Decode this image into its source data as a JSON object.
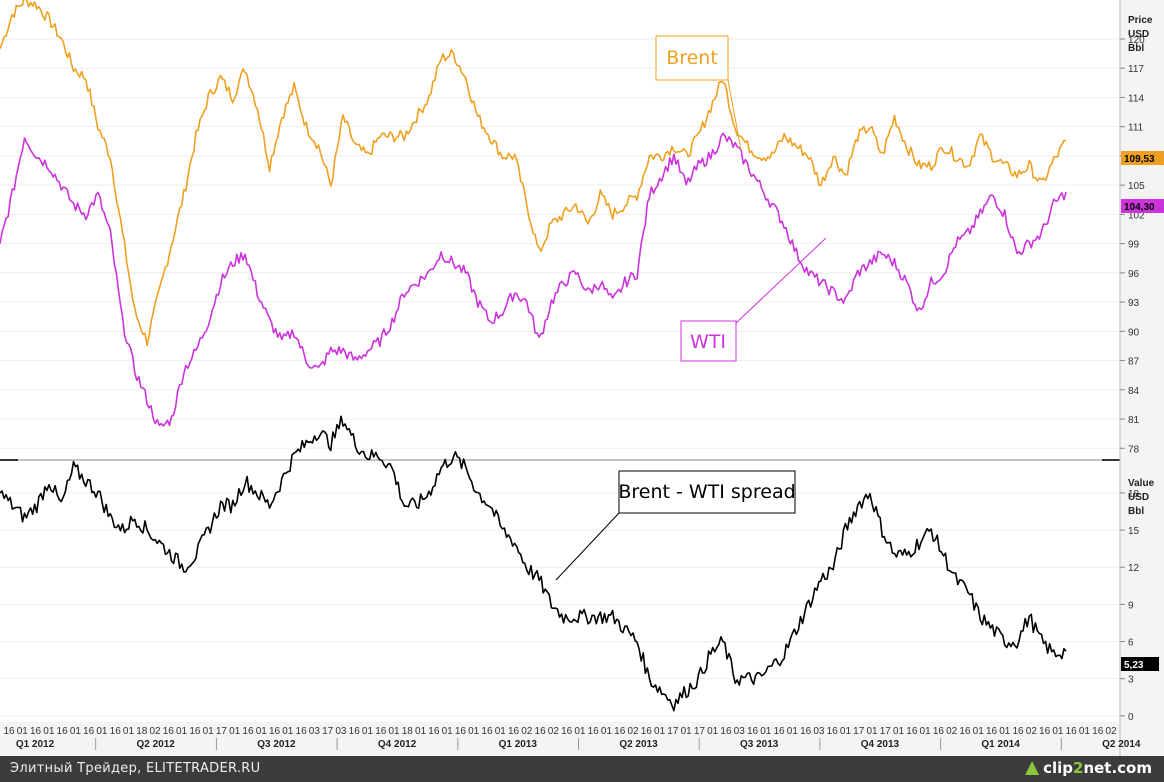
{
  "chart_data": [
    {
      "type": "line",
      "title": "",
      "ylabel_lines": [
        "Price",
        "USD",
        "Bbl"
      ],
      "ylim": [
        77,
        124
      ],
      "yticks": [
        78,
        81,
        84,
        87,
        90,
        93,
        96,
        99,
        102,
        105,
        108,
        111,
        114,
        117,
        120
      ],
      "x_range": [
        "2012-01",
        "2014-04"
      ],
      "series": [
        {
          "name": "Brent",
          "color": "#f0a020",
          "last_label": "109,53",
          "points": [
            [
              0,
              119
            ],
            [
              1,
              122.5
            ],
            [
              2,
              124
            ],
            [
              3,
              123.5
            ],
            [
              4,
              122
            ],
            [
              5,
              120
            ],
            [
              6,
              117
            ],
            [
              7,
              116
            ],
            [
              8,
              111
            ],
            [
              9,
              108
            ],
            [
              10,
              100
            ],
            [
              11,
              92
            ],
            [
              12,
              89
            ],
            [
              13,
              94
            ],
            [
              14,
              99
            ],
            [
              15,
              104
            ],
            [
              16,
              110
            ],
            [
              17,
              114
            ],
            [
              18,
              116
            ],
            [
              19,
              114
            ],
            [
              20,
              117
            ],
            [
              21,
              113
            ],
            [
              22,
              107
            ],
            [
              23,
              112
            ],
            [
              24,
              115
            ],
            [
              25,
              111
            ],
            [
              26,
              109
            ],
            [
              27,
              105
            ],
            [
              28,
              112
            ],
            [
              29,
              109
            ],
            [
              30,
              108
            ],
            [
              31,
              110
            ],
            [
              32,
              110
            ],
            [
              33,
              110
            ],
            [
              34,
              112
            ],
            [
              35,
              114
            ],
            [
              36,
              118
            ],
            [
              37,
              118.5
            ],
            [
              38,
              116
            ],
            [
              39,
              112
            ],
            [
              40,
              110
            ],
            [
              41,
              108
            ],
            [
              42,
              108
            ],
            [
              43,
              103
            ],
            [
              44,
              98
            ],
            [
              45,
              101
            ],
            [
              46,
              102
            ],
            [
              47,
              103
            ],
            [
              48,
              101
            ],
            [
              49,
              104
            ],
            [
              50,
              102
            ],
            [
              51,
              103
            ],
            [
              52,
              104
            ],
            [
              53,
              108
            ],
            [
              54,
              108
            ],
            [
              55,
              109
            ],
            [
              56,
              108
            ],
            [
              57,
              110
            ],
            [
              58,
              113
            ],
            [
              59,
              116
            ],
            [
              60,
              111
            ],
            [
              61,
              109
            ],
            [
              62,
              108
            ],
            [
              63,
              108
            ],
            [
              64,
              110
            ],
            [
              65,
              109
            ],
            [
              66,
              108
            ],
            [
              67,
              105
            ],
            [
              68,
              108
            ],
            [
              69,
              106
            ],
            [
              70,
              110
            ],
            [
              71,
              111
            ],
            [
              72,
              108
            ],
            [
              73,
              112
            ],
            [
              74,
              109
            ],
            [
              75,
              107
            ],
            [
              76,
              107
            ],
            [
              77,
              109
            ],
            [
              78,
              108
            ],
            [
              79,
              107
            ],
            [
              80,
              110
            ],
            [
              81,
              108
            ],
            [
              82,
              107
            ],
            [
              83,
              106
            ],
            [
              84,
              107
            ],
            [
              85,
              105
            ],
            [
              86,
              107.5
            ],
            [
              87,
              109.53
            ]
          ]
        },
        {
          "name": "WTI",
          "color": "#cc33dd",
          "last_label": "104,30",
          "points": [
            [
              0,
              99
            ],
            [
              1,
              104
            ],
            [
              2,
              110
            ],
            [
              3,
              108
            ],
            [
              4,
              107
            ],
            [
              5,
              105
            ],
            [
              6,
              103
            ],
            [
              7,
              102
            ],
            [
              8,
              104
            ],
            [
              9,
              100
            ],
            [
              10,
              91
            ],
            [
              11,
              86
            ],
            [
              12,
              83
            ],
            [
              13,
              80
            ],
            [
              14,
              81
            ],
            [
              15,
              86
            ],
            [
              16,
              88
            ],
            [
              17,
              91
            ],
            [
              18,
              95
            ],
            [
              19,
              97
            ],
            [
              20,
              98
            ],
            [
              21,
              94
            ],
            [
              22,
              91
            ],
            [
              23,
              89
            ],
            [
              24,
              90
            ],
            [
              25,
              87
            ],
            [
              26,
              86
            ],
            [
              27,
              88
            ],
            [
              28,
              88
            ],
            [
              29,
              87
            ],
            [
              30,
              88
            ],
            [
              31,
              89
            ],
            [
              32,
              91
            ],
            [
              33,
              94
            ],
            [
              34,
              95
            ],
            [
              35,
              96
            ],
            [
              36,
              98
            ],
            [
              37,
              97
            ],
            [
              38,
              96
            ],
            [
              39,
              93
            ],
            [
              40,
              91
            ],
            [
              41,
              92
            ],
            [
              42,
              94
            ],
            [
              43,
              93
            ],
            [
              44,
              89
            ],
            [
              45,
              93
            ],
            [
              46,
              95
            ],
            [
              47,
              96
            ],
            [
              48,
              94
            ],
            [
              49,
              95
            ],
            [
              50,
              93
            ],
            [
              51,
              95
            ],
            [
              52,
              96
            ],
            [
              53,
              104
            ],
            [
              54,
              106
            ],
            [
              55,
              108
            ],
            [
              56,
              105
            ],
            [
              57,
              107
            ],
            [
              58,
              108
            ],
            [
              59,
              110
            ],
            [
              60,
              109
            ],
            [
              61,
              107
            ],
            [
              62,
              105
            ],
            [
              63,
              103
            ],
            [
              64,
              101
            ],
            [
              65,
              98
            ],
            [
              66,
              96
            ],
            [
              67,
              95
            ],
            [
              68,
              94
            ],
            [
              69,
              93
            ],
            [
              70,
              96
            ],
            [
              71,
              97
            ],
            [
              72,
              98
            ],
            [
              73,
              97
            ],
            [
              74,
              95
            ],
            [
              75,
              92
            ],
            [
              76,
              95
            ],
            [
              77,
              96
            ],
            [
              78,
              99
            ],
            [
              79,
              100
            ],
            [
              80,
              102
            ],
            [
              81,
              104
            ],
            [
              82,
              102
            ],
            [
              83,
              98
            ],
            [
              84,
              99
            ],
            [
              85,
              100
            ],
            [
              86,
              103
            ],
            [
              87,
              104.3
            ]
          ]
        }
      ],
      "annotations": [
        {
          "text": "Brent",
          "color": "#f0a020"
        },
        {
          "text": "WTI",
          "color": "#cc33dd"
        }
      ]
    },
    {
      "type": "line",
      "title": "",
      "ylabel_lines": [
        "Value",
        "USD",
        "Bbl"
      ],
      "ylim": [
        -0.5,
        20.5
      ],
      "yticks": [
        0,
        3,
        6,
        9,
        12,
        15,
        18
      ],
      "series": [
        {
          "name": "Brent - WTI spread",
          "color": "#000000",
          "last_label": "5,23",
          "points": [
            [
              0,
              18
            ],
            [
              1,
              17
            ],
            [
              2,
              16
            ],
            [
              3,
              17
            ],
            [
              4,
              19
            ],
            [
              5,
              17
            ],
            [
              6,
              20
            ],
            [
              7,
              19
            ],
            [
              8,
              18
            ],
            [
              9,
              16
            ],
            [
              10,
              15
            ],
            [
              11,
              16
            ],
            [
              12,
              15
            ],
            [
              13,
              14
            ],
            [
              14,
              13
            ],
            [
              15,
              12
            ],
            [
              16,
              13
            ],
            [
              17,
              15
            ],
            [
              18,
              17
            ],
            [
              19,
              17
            ],
            [
              20,
              19
            ],
            [
              21,
              18
            ],
            [
              22,
              17
            ],
            [
              23,
              19
            ],
            [
              24,
              21
            ],
            [
              25,
              22
            ],
            [
              26,
              23
            ],
            [
              27,
              22
            ],
            [
              28,
              24
            ],
            [
              29,
              22
            ],
            [
              30,
              21
            ],
            [
              31,
              21
            ],
            [
              32,
              20
            ],
            [
              33,
              17
            ],
            [
              34,
              17
            ],
            [
              35,
              18
            ],
            [
              36,
              20
            ],
            [
              37,
              21
            ],
            [
              38,
              20
            ],
            [
              39,
              18
            ],
            [
              40,
              17
            ],
            [
              41,
              15
            ],
            [
              42,
              14
            ],
            [
              43,
              12
            ],
            [
              44,
              11
            ],
            [
              45,
              9
            ],
            [
              46,
              8
            ],
            [
              47,
              8
            ],
            [
              48,
              8
            ],
            [
              49,
              8
            ],
            [
              50,
              8
            ],
            [
              51,
              7
            ],
            [
              52,
              6
            ],
            [
              53,
              3
            ],
            [
              54,
              2
            ],
            [
              55,
              1
            ],
            [
              56,
              2
            ],
            [
              57,
              3
            ],
            [
              58,
              5
            ],
            [
              59,
              6
            ],
            [
              60,
              3
            ],
            [
              61,
              3
            ],
            [
              62,
              3
            ],
            [
              63,
              4
            ],
            [
              64,
              5
            ],
            [
              65,
              7
            ],
            [
              66,
              9
            ],
            [
              67,
              11
            ],
            [
              68,
              12
            ],
            [
              69,
              15
            ],
            [
              70,
              17
            ],
            [
              71,
              18
            ],
            [
              72,
              15
            ],
            [
              73,
              13
            ],
            [
              74,
              13
            ],
            [
              75,
              14
            ],
            [
              76,
              15
            ],
            [
              77,
              13
            ],
            [
              78,
              11
            ],
            [
              79,
              10
            ],
            [
              80,
              8
            ],
            [
              81,
              7
            ],
            [
              82,
              6
            ],
            [
              83,
              6
            ],
            [
              84,
              8
            ],
            [
              85,
              6
            ],
            [
              86,
              5
            ],
            [
              87,
              5.23
            ]
          ]
        }
      ],
      "annotations": [
        {
          "text": "Brent - WTI spread",
          "color": "#000000"
        }
      ]
    }
  ],
  "x_axis": {
    "day_ticks": [
      "16",
      "01",
      "16",
      "01",
      "16",
      "01",
      "16",
      "01",
      "16",
      "01",
      "18",
      "02",
      "16",
      "01",
      "16",
      "01",
      "17",
      "01",
      "16",
      "01",
      "16",
      "01",
      "16",
      "03",
      "17",
      "03",
      "16",
      "01",
      "16",
      "01",
      "18",
      "01",
      "16",
      "01",
      "16",
      "01",
      "16",
      "01",
      "16",
      "02",
      "16",
      "02",
      "16",
      "01",
      "16",
      "01",
      "16",
      "02",
      "16",
      "01",
      "17",
      "01",
      "17",
      "01",
      "16",
      "03",
      "16",
      "01",
      "16",
      "01",
      "16",
      "03",
      "16",
      "01",
      "17",
      "01",
      "17",
      "01",
      "16",
      "01",
      "16",
      "02",
      "16",
      "01",
      "16",
      "01",
      "16",
      "02",
      "16",
      "01",
      "16",
      "01",
      "16",
      "02"
    ],
    "quarters": [
      "Q1 2012",
      "Q2 2012",
      "Q3 2012",
      "Q4 2012",
      "Q1 2013",
      "Q2 2013",
      "Q3 2013",
      "Q4 2013",
      "Q1 2014",
      "Q2 2014"
    ]
  },
  "footer": {
    "source": "Элитный Трейдер, ELITETRADER.RU",
    "logo_left": "clip",
    "logo_mid": "2",
    "logo_right": "net.com"
  }
}
